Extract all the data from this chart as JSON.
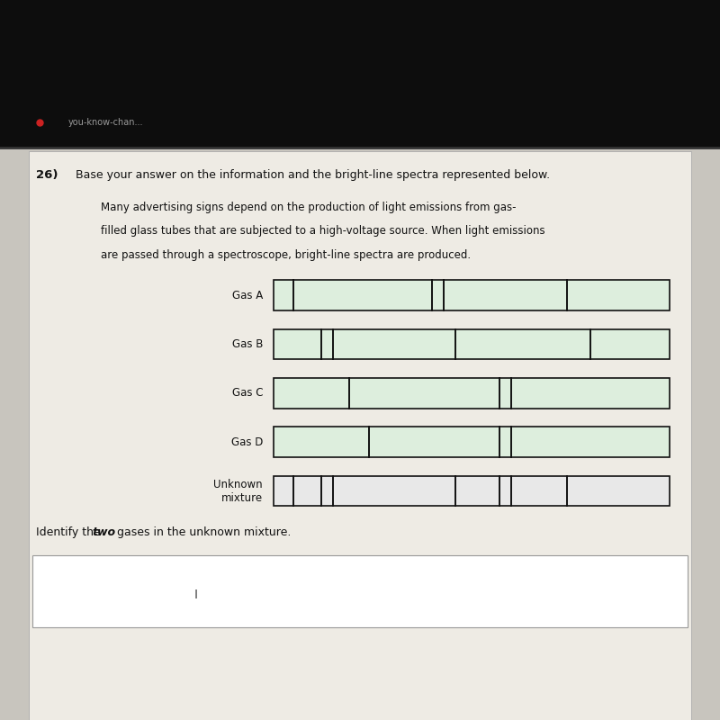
{
  "title_num": "26)",
  "title_text": "Base your answer on the information and the bright-line spectra represented below.",
  "paragraph_lines": [
    "Many advertising signs depend on the production of light emissions from gas-",
    "filled glass tubes that are subjected to a high-voltage source. When light emissions",
    "are passed through a spectroscope, bright-line spectra are produced."
  ],
  "bg_color": "#c8c5be",
  "paper_color": "#eeebe4",
  "bar_color_gas": "#ddeedd",
  "bar_color_unknown": "#e8e8e8",
  "line_color": "#111111",
  "header_color": "#0d0d0d",
  "red_dot_color": "#cc2222",
  "header_text": "you-know-chan...",
  "spectra": [
    {
      "label": "Gas A",
      "lines": [
        0.05,
        0.4,
        0.43,
        0.74
      ]
    },
    {
      "label": "Gas B",
      "lines": [
        0.12,
        0.15,
        0.46,
        0.8
      ]
    },
    {
      "label": "Gas C",
      "lines": [
        0.19,
        0.57,
        0.6
      ]
    },
    {
      "label": "Gas D",
      "lines": [
        0.24,
        0.57,
        0.6
      ]
    },
    {
      "label": "Unknown\nmixture",
      "lines": [
        0.05,
        0.12,
        0.15,
        0.46,
        0.57,
        0.6,
        0.74
      ]
    }
  ],
  "fig_width": 8.0,
  "fig_height": 8.0,
  "dpi": 100
}
